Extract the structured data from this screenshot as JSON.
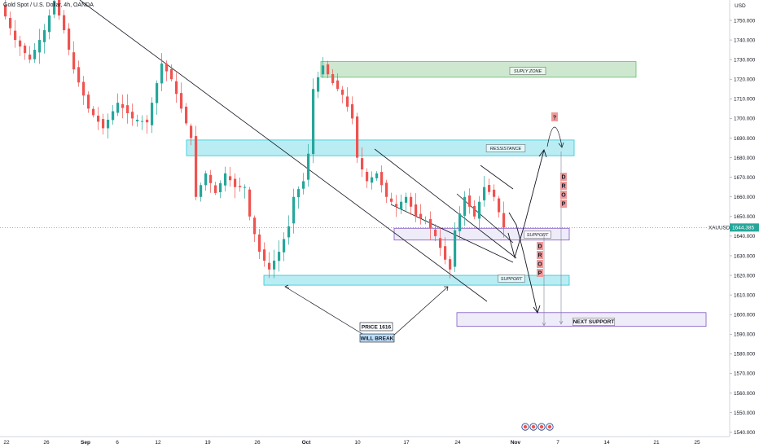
{
  "header": {
    "title": "Gold Spot / U.S. Dollar, 4h, OANDA"
  },
  "axis": {
    "currency": "USD"
  },
  "price_tag": {
    "symbol": "XAUUSD",
    "value": "1644.385"
  },
  "colors": {
    "up": "#26a69a",
    "down": "#ef5350",
    "zone_blue": "#80deea",
    "zone_green": "#a5d6a7",
    "zone_purple": "#e1dcf5",
    "price_tag": "#26a69a"
  },
  "annotations": {
    "supply_zone": "SUPLY ZONE",
    "resistance": "RESSISTANCE",
    "support_mid": "SUPPORT",
    "support_low": "SUPPORT",
    "next_support": "NEXT SUPPORT",
    "price_1616": "PRICE 1616",
    "will_break": "WILL  BREAK",
    "drop_upper": [
      "D",
      "R",
      "O",
      "P"
    ],
    "drop_lower": [
      "D",
      "R",
      "O",
      "P"
    ],
    "question": "?"
  },
  "chart_data": {
    "type": "candlestick",
    "symbol": "XAUUSD",
    "timeframe": "4h",
    "y_ticks": [
      1540,
      1550,
      1560,
      1570,
      1580,
      1590,
      1600,
      1610,
      1620,
      1630,
      1640,
      1650,
      1660,
      1670,
      1680,
      1690,
      1700,
      1710,
      1720,
      1730,
      1740,
      1750
    ],
    "y_tick_labels": [
      "1540.000",
      "1550.000",
      "1560.000",
      "1570.000",
      "1580.000",
      "1590.000",
      "1600.000",
      "1610.000",
      "1620.000",
      "1630.000",
      "1640.000",
      "1650.000",
      "1660.000",
      "1670.000",
      "1680.000",
      "1690.000",
      "1700.000",
      "1710.000",
      "1720.000",
      "1730.000",
      "1740.000",
      "1750.000"
    ],
    "x_ticks": [
      "22",
      "26",
      "Sep",
      "6",
      "12",
      "19",
      "26",
      "Oct",
      "10",
      "17",
      "24",
      "Nov",
      "7",
      "14",
      "21",
      "25"
    ],
    "ylim": [
      1538,
      1764
    ],
    "last_price": 1644.385,
    "price_path": [
      [
        0,
        1758
      ],
      [
        3,
        1740
      ],
      [
        6,
        1730
      ],
      [
        9,
        1745
      ],
      [
        11,
        1760
      ],
      [
        13,
        1745
      ],
      [
        15,
        1725
      ],
      [
        18,
        1705
      ],
      [
        21,
        1695
      ],
      [
        24,
        1708
      ],
      [
        27,
        1700
      ],
      [
        30,
        1698
      ],
      [
        33,
        1728
      ],
      [
        35,
        1720
      ],
      [
        37,
        1705
      ],
      [
        39,
        1690
      ],
      [
        40,
        1660
      ],
      [
        42,
        1672
      ],
      [
        44,
        1662
      ],
      [
        46,
        1672
      ],
      [
        48,
        1665
      ],
      [
        50,
        1665
      ],
      [
        51,
        1650
      ],
      [
        53,
        1632
      ],
      [
        55,
        1623
      ],
      [
        57,
        1632
      ],
      [
        59,
        1645
      ],
      [
        60,
        1660
      ],
      [
        62,
        1668
      ],
      [
        63,
        1682
      ],
      [
        64,
        1715
      ],
      [
        66,
        1727
      ],
      [
        68,
        1718
      ],
      [
        70,
        1712
      ],
      [
        72,
        1700
      ],
      [
        73,
        1680
      ],
      [
        75,
        1668
      ],
      [
        77,
        1672
      ],
      [
        79,
        1660
      ],
      [
        81,
        1655
      ],
      [
        83,
        1660
      ],
      [
        85,
        1650
      ],
      [
        87,
        1648
      ],
      [
        89,
        1640
      ],
      [
        91,
        1628
      ],
      [
        92,
        1623
      ],
      [
        93,
        1643
      ],
      [
        95,
        1660
      ],
      [
        97,
        1650
      ],
      [
        99,
        1665
      ],
      [
        101,
        1660
      ],
      [
        103,
        1644.385
      ]
    ],
    "zones": [
      {
        "label": "SUPLY ZONE",
        "from": 1721,
        "to": 1729
      },
      {
        "label": "RESSISTANCE",
        "from": 1681,
        "to": 1689
      },
      {
        "label": "SUPPORT",
        "from": 1638,
        "to": 1644
      },
      {
        "label": "SUPPORT",
        "from": 1615,
        "to": 1620
      },
      {
        "label": "NEXT SUPPORT",
        "from": 1594,
        "to": 1601
      }
    ]
  }
}
